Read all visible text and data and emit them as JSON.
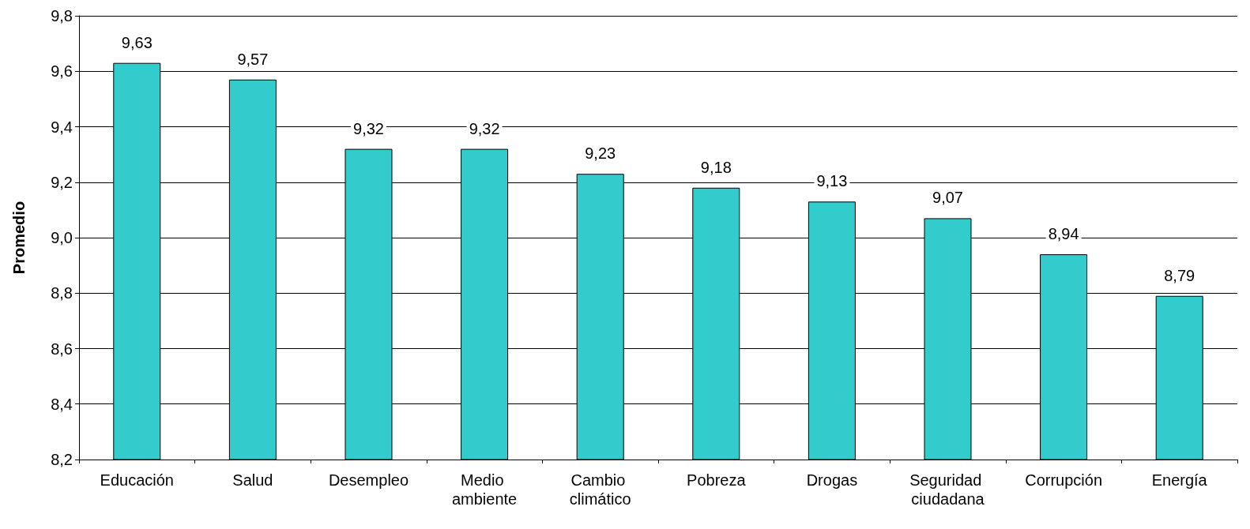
{
  "chart_data": {
    "type": "bar",
    "ylabel": "Promedio",
    "categories": [
      "Educación",
      "Salud",
      "Desempleo",
      "Medio ambiente",
      "Cambio climático",
      "Pobreza",
      "Drogas",
      "Seguridad ciudadana",
      "Corrupción",
      "Energía"
    ],
    "values": [
      9.63,
      9.57,
      9.32,
      9.32,
      9.23,
      9.18,
      9.13,
      9.07,
      8.94,
      8.79
    ],
    "value_labels": [
      "9,63",
      "9,57",
      "9,32",
      "9,32",
      "9,23",
      "9,18",
      "9,13",
      "9,07",
      "8,94",
      "8,79"
    ],
    "color": "#33cccc",
    "ylim": [
      8.2,
      9.8
    ],
    "yticks": [
      {
        "value": 8.2,
        "label": "8,2"
      },
      {
        "value": 8.4,
        "label": "8,4"
      },
      {
        "value": 8.6,
        "label": "8,6"
      },
      {
        "value": 8.8,
        "label": "8,8"
      },
      {
        "value": 9.0,
        "label": "9,0"
      },
      {
        "value": 9.2,
        "label": "9,2"
      },
      {
        "value": 9.4,
        "label": "9,4"
      },
      {
        "value": 9.6,
        "label": "9,6"
      },
      {
        "value": 9.8,
        "label": "9,8"
      }
    ],
    "grid": "y"
  }
}
